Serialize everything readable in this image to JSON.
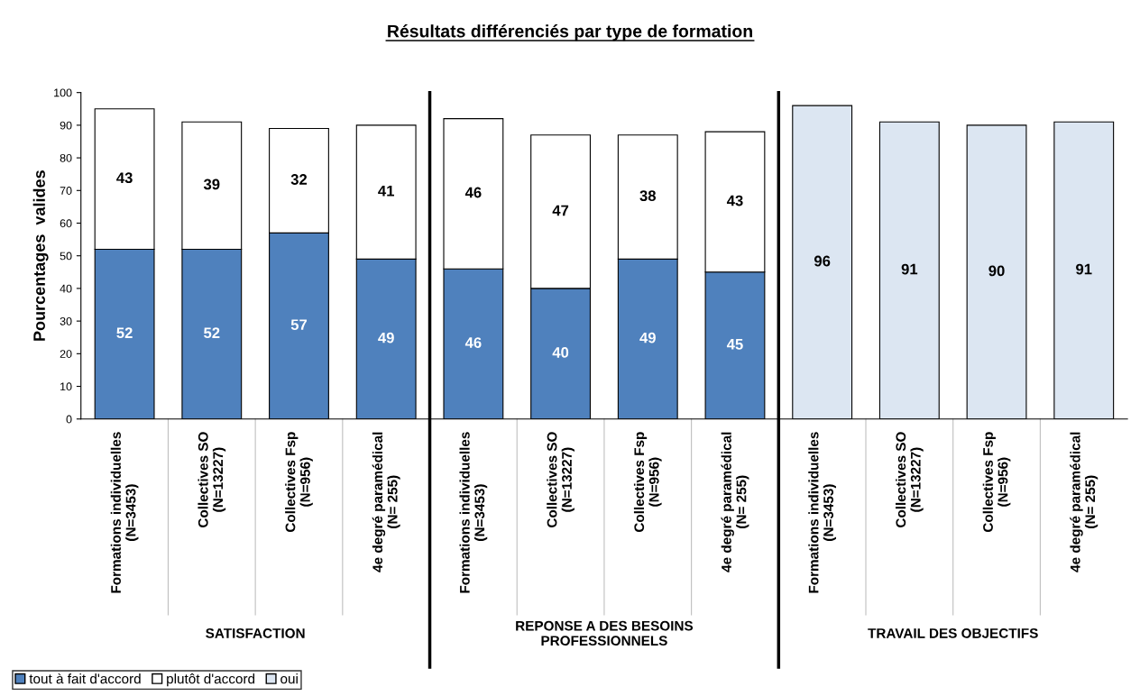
{
  "chart_data": {
    "type": "bar",
    "title": "Résultats différenciés par type de formation",
    "ylabel": "Pourcentages  valides",
    "categories": [
      "Formations individuelles\n(N=3453)",
      "Collectives SO\n(N=13227)",
      "Collectives Fsp\n(N=956)",
      "4e degré paramédical\n(N= 255)",
      "Formations individuelles\n(N=3453)",
      "Collectives SO\n(N=13227)",
      "Collectives Fsp\n(N=956)",
      "4e degré paramédical\n(N= 255)",
      "Formations individuelles\n(N=3453)",
      "Collectives SO\n(N=13227)",
      "Collectives Fsp\n(N=956)",
      "4e degré paramédical\n(N= 255)"
    ],
    "series": [
      {
        "name": "tout à fait d'accord",
        "color": "#4f81bd",
        "values": [
          52,
          52,
          57,
          49,
          46,
          40,
          49,
          45,
          null,
          null,
          null,
          null
        ]
      },
      {
        "name": "plutôt d'accord",
        "color": "#ffffff",
        "values": [
          43,
          39,
          32,
          41,
          46,
          47,
          38,
          43,
          null,
          null,
          null,
          null
        ]
      },
      {
        "name": "oui",
        "color": "#dce6f2",
        "values": [
          null,
          null,
          null,
          null,
          null,
          null,
          null,
          null,
          96,
          91,
          90,
          91
        ]
      }
    ],
    "stacked": true,
    "data_labels": true,
    "ylim": [
      0,
      100
    ],
    "yticks": [
      0,
      10,
      20,
      30,
      40,
      50,
      60,
      70,
      80,
      90,
      100
    ],
    "grid": false,
    "legend": "bottom left",
    "annotations": [
      "SATISFACTION",
      "REPONSE A DES BESOINS\nPROFESSIONNELS",
      "TRAVAIL DES OBJECTIFS"
    ]
  }
}
